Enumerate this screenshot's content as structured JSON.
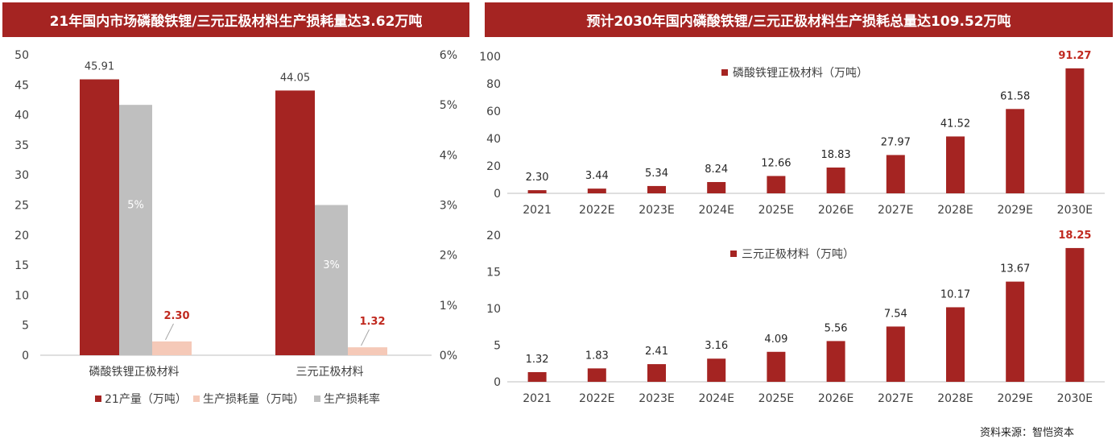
{
  "left_panel": {
    "title": "21年国内市场磷酸铁锂/三元正极材料生产损耗量达3.62万吨"
  },
  "right_panel": {
    "title": "预计2030年国内磷酸铁锂/三元正极材料生产损耗总量达109.52万吨"
  },
  "source": "资料来源：智恺资本",
  "colors": {
    "banner": "#a52422",
    "dark_red": "#a52422",
    "pink": "#f5c9b8",
    "grey": "#bfbfbf",
    "highlight_text": "#c0291f"
  },
  "chart_data": [
    {
      "type": "bar",
      "categories": [
        "磷酸铁锂正极材料",
        "三元正极材料"
      ],
      "series": [
        {
          "name": "21产量（万吨）",
          "axis": "left",
          "values": [
            45.91,
            44.05
          ],
          "labels": [
            "45.91",
            "44.05"
          ]
        },
        {
          "name": "生产损耗率",
          "axis": "right",
          "values": [
            0.05,
            0.03
          ],
          "labels": [
            "5%",
            "3%"
          ]
        },
        {
          "name": "生产损耗量（万吨）",
          "axis": "left",
          "values": [
            2.3,
            1.32
          ],
          "labels": [
            "2.30",
            "1.32"
          ]
        }
      ],
      "legend": [
        "21产量（万吨）",
        "生产损耗量（万吨）",
        "生产损耗率"
      ],
      "y_left": {
        "lim": [
          0,
          50
        ],
        "ticks": [
          "0",
          "5",
          "10",
          "15",
          "20",
          "25",
          "30",
          "35",
          "40",
          "45",
          "50"
        ]
      },
      "y_right": {
        "lim": [
          0,
          0.06
        ],
        "ticks": [
          "0%",
          "1%",
          "2%",
          "3%",
          "4%",
          "5%",
          "6%"
        ]
      },
      "legend_position": "bottom"
    },
    {
      "type": "bar",
      "categories": [
        "2021",
        "2022E",
        "2023E",
        "2024E",
        "2025E",
        "2026E",
        "2027E",
        "2028E",
        "2029E",
        "2030E"
      ],
      "series": [
        {
          "name": "磷酸铁锂正极材料（万吨）",
          "values": [
            2.3,
            3.44,
            5.34,
            8.24,
            12.66,
            18.83,
            27.97,
            41.52,
            61.58,
            91.27
          ],
          "labels": [
            "2.30",
            "3.44",
            "5.34",
            "8.24",
            "12.66",
            "18.83",
            "27.97",
            "41.52",
            "61.58",
            "91.27"
          ]
        }
      ],
      "ylim": [
        0,
        100
      ],
      "yticks": [
        "0",
        "20",
        "40",
        "60",
        "80",
        "100"
      ],
      "legend_position": "top-center"
    },
    {
      "type": "bar",
      "categories": [
        "2021",
        "2022E",
        "2023E",
        "2024E",
        "2025E",
        "2026E",
        "2027E",
        "2028E",
        "2029E",
        "2030E"
      ],
      "series": [
        {
          "name": "三元正极材料（万吨）",
          "values": [
            1.32,
            1.83,
            2.41,
            3.16,
            4.09,
            5.56,
            7.54,
            10.17,
            13.67,
            18.25
          ],
          "labels": [
            "1.32",
            "1.83",
            "2.41",
            "3.16",
            "4.09",
            "5.56",
            "7.54",
            "10.17",
            "13.67",
            "18.25"
          ]
        }
      ],
      "ylim": [
        0,
        20
      ],
      "yticks": [
        "0",
        "5",
        "10",
        "15",
        "20"
      ],
      "legend_position": "top-center"
    }
  ]
}
